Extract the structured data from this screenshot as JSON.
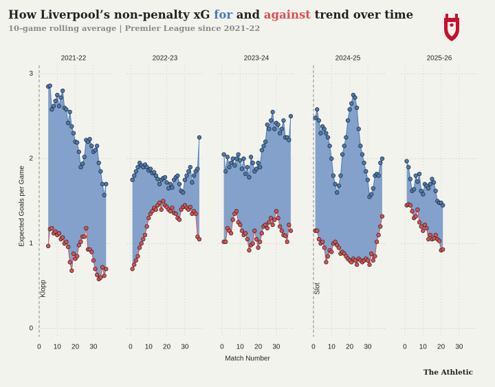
{
  "title": [
    "How Liverpool’s non-penalty xG ",
    "for",
    " and ",
    "against",
    " trend over time"
  ],
  "subtitle": "10-game rolling average | Premier League since 2021-22",
  "y_axis": {
    "label": "Expected Goals per Game",
    "ylim": [
      -0.1,
      3.1
    ],
    "yticks": [
      0,
      1,
      2,
      3
    ]
  },
  "x_label": "Match Number",
  "source": "The Athletic",
  "chart_data": [
    {
      "type": "line",
      "title": "2021-22",
      "annotation": "Klopp",
      "xlim": [
        -2,
        40
      ],
      "xticks": [
        0,
        10,
        20,
        30
      ],
      "fill_color": "#7c9cc7",
      "x": [
        5,
        6,
        7,
        8,
        9,
        10,
        11,
        12,
        13,
        14,
        15,
        16,
        17,
        18,
        19,
        20,
        21,
        22,
        23,
        24,
        25,
        26,
        27,
        28,
        29,
        30,
        31,
        32,
        33,
        34,
        35,
        36,
        37
      ],
      "series": [
        {
          "color": "#4a7ab5",
          "values": [
            2.85,
            2.86,
            2.58,
            2.62,
            2.68,
            2.75,
            2.62,
            2.72,
            2.8,
            2.6,
            2.58,
            2.42,
            2.55,
            2.38,
            2.3,
            2.2,
            2.19,
            2.08,
            1.9,
            1.94,
            2.02,
            2.22,
            2.2,
            2.23,
            2.15,
            2.08,
            2.1,
            2.15,
            1.95,
            1.85,
            1.7,
            1.57,
            1.7
          ]
        },
        {
          "color": "#dd4f52",
          "values": [
            0.97,
            1.17,
            1.18,
            1.12,
            1.14,
            1.1,
            1.12,
            1.05,
            1.07,
            1.0,
            1.02,
            0.96,
            0.78,
            0.68,
            0.88,
            0.82,
            0.85,
            0.98,
            1.02,
            1.08,
            1.08,
            1.18,
            0.93,
            0.93,
            0.9,
            0.8,
            0.7,
            0.63,
            0.58,
            0.6,
            0.72,
            0.62,
            0.7
          ]
        }
      ]
    },
    {
      "type": "line",
      "title": "2022-23",
      "xlim": [
        -2,
        40
      ],
      "xticks": [
        0,
        10,
        20,
        30
      ],
      "fill_color": "#7c9cc7",
      "x": [
        1,
        2,
        3,
        4,
        5,
        6,
        7,
        8,
        9,
        10,
        11,
        12,
        13,
        14,
        15,
        16,
        17,
        18,
        19,
        20,
        21,
        22,
        23,
        24,
        25,
        26,
        27,
        28,
        29,
        30,
        31,
        32,
        33,
        34,
        35,
        36,
        37,
        38
      ],
      "series": [
        {
          "color": "#4a7ab5",
          "values": [
            1.75,
            1.8,
            1.85,
            1.9,
            1.95,
            1.92,
            1.9,
            1.93,
            1.9,
            1.86,
            1.88,
            1.83,
            1.84,
            1.8,
            1.76,
            1.7,
            1.75,
            1.77,
            1.78,
            1.72,
            1.65,
            1.7,
            1.66,
            1.75,
            1.78,
            1.8,
            1.7,
            1.62,
            1.6,
            1.75,
            1.8,
            1.85,
            1.9,
            1.72,
            1.8,
            1.85,
            1.88,
            2.25
          ]
        },
        {
          "color": "#dd4f52",
          "values": [
            0.7,
            0.75,
            0.8,
            0.85,
            0.95,
            1.0,
            1.05,
            1.1,
            1.2,
            1.3,
            1.35,
            1.38,
            1.42,
            1.4,
            1.45,
            1.48,
            1.4,
            1.5,
            1.45,
            1.43,
            1.4,
            1.38,
            1.42,
            1.36,
            1.35,
            1.3,
            1.28,
            1.4,
            1.43,
            1.45,
            1.42,
            1.4,
            1.43,
            1.35,
            1.38,
            1.35,
            1.08,
            1.05
          ]
        }
      ]
    },
    {
      "type": "line",
      "title": "2023-24",
      "xlim": [
        -2,
        40
      ],
      "xticks": [
        0,
        10,
        20,
        30
      ],
      "fill_color": "#7c9cc7",
      "x": [
        1,
        2,
        3,
        4,
        5,
        6,
        7,
        8,
        9,
        10,
        11,
        12,
        13,
        14,
        15,
        16,
        17,
        18,
        19,
        20,
        21,
        22,
        23,
        24,
        25,
        26,
        27,
        28,
        29,
        30,
        31,
        32,
        33,
        34,
        35,
        36,
        37,
        38
      ],
      "series": [
        {
          "color": "#4a7ab5",
          "values": [
            2.05,
            1.85,
            2.02,
            1.9,
            1.95,
            2.0,
            1.92,
            2.0,
            2.05,
            1.98,
            1.88,
            2.0,
            1.82,
            1.9,
            1.78,
            2.02,
            1.95,
            1.85,
            1.88,
            1.95,
            1.9,
            2.1,
            2.15,
            2.2,
            2.4,
            2.35,
            2.45,
            2.55,
            2.35,
            2.42,
            2.4,
            2.3,
            2.35,
            2.45,
            2.25,
            2.25,
            2.22,
            2.5
          ]
        },
        {
          "color": "#dd4f52",
          "values": [
            1.02,
            1.02,
            1.18,
            1.15,
            1.12,
            1.28,
            1.35,
            1.38,
            1.25,
            1.22,
            1.15,
            1.1,
            1.12,
            1.05,
            0.92,
            0.98,
            1.0,
            1.15,
            1.05,
            0.95,
            1.02,
            1.12,
            1.2,
            1.22,
            1.18,
            1.25,
            1.3,
            1.22,
            1.28,
            1.38,
            1.3,
            1.2,
            1.15,
            1.1,
            1.09,
            1.02,
            1.22,
            1.15
          ]
        }
      ]
    },
    {
      "type": "line",
      "title": "2024-25",
      "annotation": "Slot",
      "xlim": [
        -2,
        40
      ],
      "xticks": [
        0,
        10,
        20,
        30
      ],
      "fill_color": "#7c9cc7",
      "x": [
        1,
        2,
        3,
        4,
        5,
        6,
        7,
        8,
        9,
        10,
        11,
        12,
        13,
        14,
        15,
        16,
        17,
        18,
        19,
        20,
        21,
        22,
        23,
        24,
        25,
        26,
        27,
        28,
        29,
        30,
        31,
        32,
        33,
        34,
        35,
        36,
        37,
        38
      ],
      "series": [
        {
          "color": "#4a7ab5",
          "values": [
            2.48,
            2.58,
            2.45,
            2.3,
            2.38,
            2.35,
            2.3,
            2.25,
            2.15,
            2.0,
            1.8,
            1.7,
            1.6,
            1.68,
            1.8,
            2.05,
            2.15,
            2.25,
            2.45,
            2.58,
            2.65,
            2.75,
            2.72,
            2.6,
            2.35,
            2.15,
            2.05,
            1.95,
            1.85,
            1.75,
            1.55,
            1.58,
            1.65,
            1.8,
            1.82,
            1.8,
            1.95,
            2.0
          ]
        },
        {
          "color": "#dd4f52",
          "values": [
            1.15,
            1.15,
            1.05,
            1.0,
            1.02,
            0.95,
            0.78,
            0.85,
            0.92,
            0.9,
            1.0,
            1.02,
            0.98,
            0.95,
            0.88,
            0.9,
            0.88,
            0.85,
            0.82,
            0.8,
            0.78,
            0.82,
            0.8,
            0.75,
            0.82,
            0.8,
            0.78,
            0.8,
            0.82,
            0.8,
            0.75,
            0.88,
            0.8,
            0.85,
            1.02,
            1.1,
            1.2,
            1.32
          ]
        }
      ]
    },
    {
      "type": "line",
      "title": "2025-26",
      "xlim": [
        -2,
        40
      ],
      "xticks": [
        0,
        10,
        20,
        30
      ],
      "fill_color": "#7c9cc7",
      "x": [
        1,
        2,
        3,
        4,
        5,
        6,
        7,
        8,
        9,
        10,
        11,
        12,
        13,
        14,
        15,
        16,
        17,
        18,
        19,
        20,
        21
      ],
      "series": [
        {
          "color": "#4a7ab5",
          "values": [
            1.97,
            1.9,
            1.76,
            1.62,
            1.64,
            1.8,
            1.73,
            1.82,
            1.62,
            1.58,
            1.7,
            1.68,
            1.65,
            1.7,
            1.76,
            1.72,
            1.62,
            1.5,
            1.48,
            1.48,
            1.45
          ]
        },
        {
          "color": "#dd4f52",
          "values": [
            1.45,
            1.46,
            1.45,
            1.38,
            1.3,
            1.32,
            1.4,
            1.25,
            1.2,
            1.15,
            1.22,
            1.18,
            1.05,
            1.1,
            1.05,
            1.06,
            1.1,
            1.05,
            1.03,
            0.92,
            0.93
          ]
        }
      ]
    }
  ]
}
